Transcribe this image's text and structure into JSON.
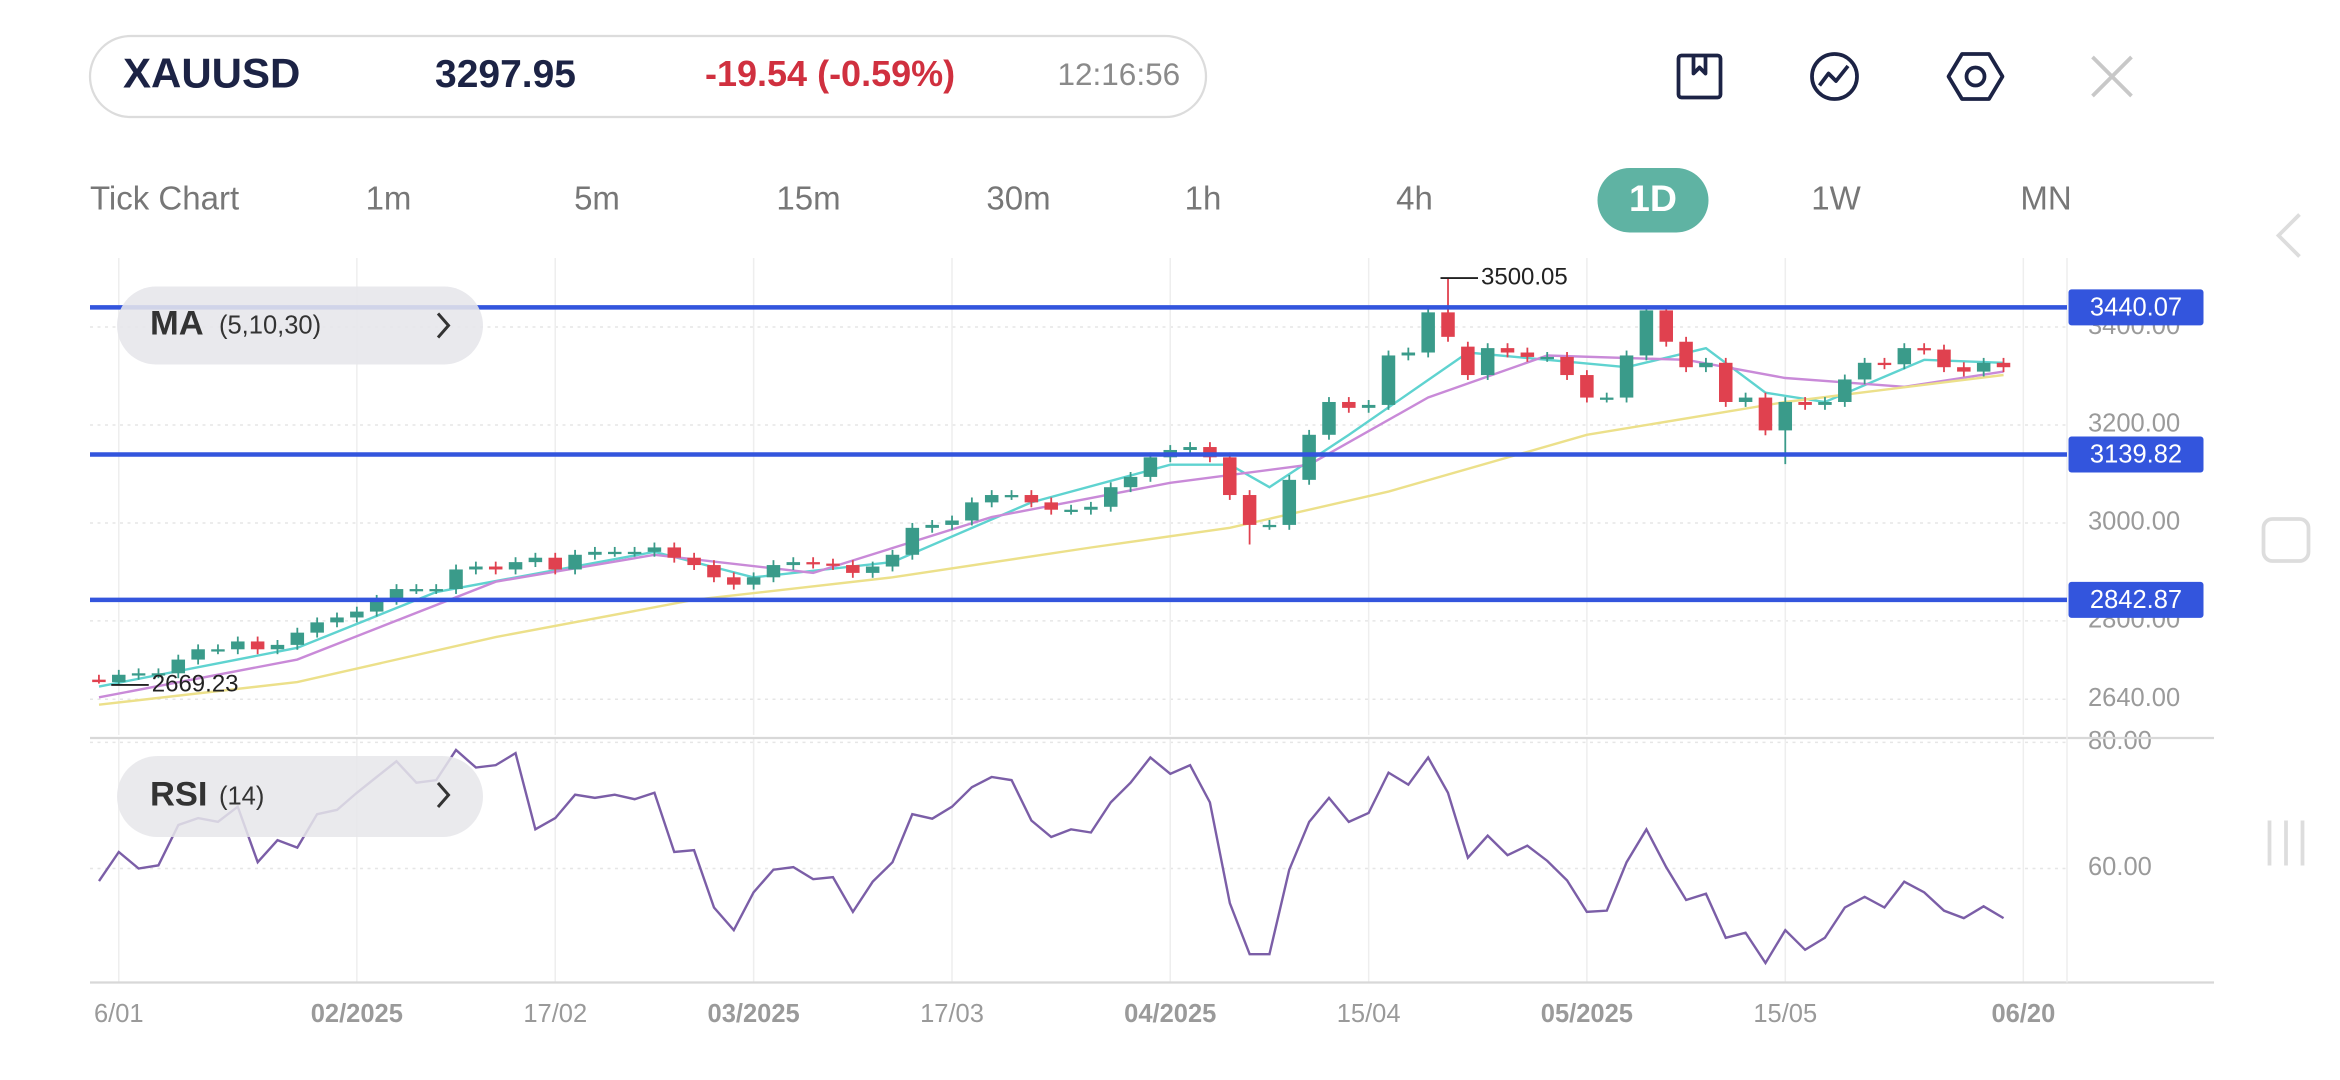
{
  "header": {
    "symbol": "XAUUSD",
    "price": 3297.95,
    "change": "-19.54 (-0.59%)",
    "time": "12:16:56"
  },
  "timeframes": [
    "Tick Chart",
    "1m",
    "5m",
    "15m",
    "30m",
    "1h",
    "4h",
    "1D",
    "1W",
    "MN"
  ],
  "active_timeframe_index": 7,
  "indicators": {
    "ma": {
      "name": "MA",
      "params": "(5,10,30)"
    },
    "rsi": {
      "name": "RSI",
      "params": "(14)"
    }
  },
  "chart_data": {
    "type": "candlestick",
    "x": [
      0,
      1,
      2,
      3,
      4,
      5,
      6,
      7,
      8,
      9,
      10,
      11,
      12,
      13,
      14,
      15,
      16,
      17,
      18,
      19,
      20,
      21,
      22,
      23,
      24,
      25,
      26,
      27,
      28,
      29,
      30,
      31,
      32,
      33,
      34,
      35,
      36,
      37,
      38,
      39,
      40,
      41,
      42,
      43,
      44,
      45,
      46,
      47,
      48,
      49,
      50,
      51,
      52,
      53,
      54,
      55,
      56,
      57,
      58,
      59,
      60,
      61,
      62,
      63,
      64,
      65,
      66,
      67,
      68,
      69,
      70,
      71,
      72,
      73,
      74,
      75,
      76,
      77,
      78,
      79,
      80,
      81,
      82,
      83,
      84,
      85,
      86,
      87,
      88,
      89,
      90,
      91,
      92,
      93,
      94,
      95,
      96
    ],
    "open": [
      2680,
      2675,
      2690,
      2693,
      2693,
      2721,
      2742,
      2742,
      2758,
      2742,
      2751,
      2776,
      2797,
      2807,
      2819,
      2843,
      2865,
      2865,
      2865,
      2905,
      2911,
      2905,
      2920,
      2929,
      2905,
      2935,
      2941,
      2941,
      2941,
      2950,
      2929,
      2914,
      2889,
      2874,
      2889,
      2914,
      2920,
      2917,
      2914,
      2898,
      2911,
      2935,
      2990,
      2996,
      3005,
      3042,
      3057,
      3057,
      3042,
      3027,
      3027,
      3033,
      3073,
      3094,
      3134,
      3149,
      3155,
      3134,
      3057,
      2996,
      2996,
      3088,
      3180,
      3247,
      3235,
      3241,
      3342,
      3348,
      3430,
      3360,
      3302,
      3357,
      3348,
      3339,
      3339,
      3302,
      3256,
      3256,
      3342,
      3434,
      3370,
      3318,
      3327,
      3247,
      3256,
      3189,
      3247,
      3241,
      3247,
      3293,
      3327,
      3324,
      3357,
      3354,
      3318,
      3309,
      3327
    ],
    "high": [
      2690,
      2700,
      2703,
      2703,
      2731,
      2752,
      2752,
      2768,
      2768,
      2761,
      2786,
      2807,
      2817,
      2829,
      2853,
      2875,
      2875,
      2875,
      2915,
      2921,
      2921,
      2930,
      2939,
      2939,
      2945,
      2951,
      2951,
      2951,
      2960,
      2960,
      2939,
      2924,
      2899,
      2899,
      2924,
      2930,
      2930,
      2927,
      2924,
      2921,
      2945,
      3000,
      3006,
      3015,
      3052,
      3067,
      3067,
      3067,
      3052,
      3037,
      3043,
      3083,
      3104,
      3144,
      3159,
      3165,
      3165,
      3144,
      3067,
      3006,
      3098,
      3190,
      3257,
      3257,
      3251,
      3352,
      3358,
      3440,
      3500.05,
      3370,
      3367,
      3367,
      3358,
      3349,
      3349,
      3312,
      3266,
      3352,
      3444,
      3444,
      3380,
      3337,
      3337,
      3266,
      3266,
      3257,
      3257,
      3257,
      3303,
      3337,
      3337,
      3367,
      3367,
      3364,
      3328,
      3337,
      3337
    ],
    "low": [
      2672,
      2669.23,
      2680,
      2683,
      2683,
      2711,
      2732,
      2732,
      2732,
      2732,
      2741,
      2766,
      2787,
      2797,
      2809,
      2833,
      2855,
      2855,
      2855,
      2895,
      2895,
      2895,
      2910,
      2895,
      2895,
      2925,
      2931,
      2931,
      2931,
      2919,
      2904,
      2879,
      2864,
      2864,
      2879,
      2904,
      2907,
      2904,
      2888,
      2888,
      2901,
      2925,
      2980,
      2986,
      2995,
      3032,
      3047,
      3032,
      3017,
      3017,
      3017,
      3023,
      3063,
      3084,
      3124,
      3139,
      3124,
      3047,
      2956,
      2986,
      2986,
      3078,
      3170,
      3225,
      3225,
      3231,
      3332,
      3338,
      3370,
      3292,
      3292,
      3338,
      3329,
      3329,
      3292,
      3246,
      3246,
      3246,
      3332,
      3360,
      3308,
      3308,
      3237,
      3237,
      3179,
      3120,
      3231,
      3231,
      3237,
      3283,
      3314,
      3314,
      3344,
      3308,
      3299,
      3299,
      3308
    ],
    "close": [
      2675,
      2690,
      2693,
      2693,
      2721,
      2742,
      2742,
      2758,
      2742,
      2751,
      2776,
      2797,
      2807,
      2819,
      2843,
      2865,
      2865,
      2865,
      2905,
      2911,
      2905,
      2920,
      2929,
      2905,
      2935,
      2941,
      2941,
      2941,
      2950,
      2929,
      2914,
      2889,
      2874,
      2889,
      2914,
      2920,
      2917,
      2914,
      2898,
      2911,
      2935,
      2990,
      2996,
      3005,
      3042,
      3057,
      3057,
      3042,
      3027,
      3027,
      3033,
      3073,
      3094,
      3134,
      3149,
      3155,
      3134,
      3057,
      2996,
      2996,
      3088,
      3180,
      3247,
      3235,
      3241,
      3342,
      3348,
      3430,
      3380,
      3302,
      3357,
      3348,
      3339,
      3339,
      3302,
      3256,
      3256,
      3342,
      3434,
      3370,
      3318,
      3327,
      3247,
      3256,
      3189,
      3247,
      3241,
      3247,
      3293,
      3327,
      3324,
      3357,
      3354,
      3318,
      3309,
      3327,
      3318
    ],
    "up_color": "#3a9b8a",
    "down_color": "#e0414f",
    "xlim": [
      -0.45,
      99.2
    ],
    "xticks": [
      {
        "value": 1,
        "label": "6/01"
      },
      {
        "value": 13,
        "label": "02/2025"
      },
      {
        "value": 23,
        "label": "17/02"
      },
      {
        "value": 33,
        "label": "03/2025"
      },
      {
        "value": 43,
        "label": "17/03"
      },
      {
        "value": 54,
        "label": "04/2025"
      },
      {
        "value": 64,
        "label": "15/04"
      },
      {
        "value": 75,
        "label": "05/2025"
      },
      {
        "value": 85,
        "label": "15/05"
      },
      {
        "value": 97,
        "label": "06/20"
      }
    ],
    "ylim": [
      2567,
      3541
    ],
    "yticks": [
      {
        "value": 2640,
        "label": "2640.00"
      },
      {
        "value": 2800,
        "label": "2800.00"
      },
      {
        "value": 3000,
        "label": "3000.00"
      },
      {
        "value": 3200,
        "label": "3200.00"
      },
      {
        "value": 3400,
        "label": "3400.00"
      }
    ],
    "grid": true,
    "levels": [
      3440.07,
      3139.82,
      2842.87
    ],
    "level_color": "#3355dd",
    "overlays": [
      {
        "color": "#5fd3d0",
        "x": [
          0,
          10,
          17,
          28,
          33,
          40,
          47,
          54,
          57,
          59,
          63,
          69,
          77,
          81,
          84,
          87,
          92,
          96
        ],
        "values": [
          2666,
          2745,
          2859,
          2941,
          2889,
          2920,
          3042,
          3119,
          3119,
          3073,
          3180,
          3348,
          3318,
          3357,
          3266,
          3247,
          3333,
          3327
        ]
      },
      {
        "color": "#c98ad8",
        "x": [
          0,
          10,
          20,
          28,
          36,
          45,
          54,
          61,
          67,
          73,
          80,
          85,
          91,
          96
        ],
        "values": [
          2644,
          2721,
          2880,
          2935,
          2898,
          3012,
          3082,
          3119,
          3256,
          3342,
          3333,
          3296,
          3278,
          3309
        ]
      },
      {
        "color": "#ece08a",
        "x": [
          0,
          10,
          20,
          30,
          40,
          50,
          57,
          65,
          75,
          85,
          96
        ],
        "values": [
          2629,
          2675,
          2767,
          2843,
          2889,
          2950,
          2990,
          3064,
          3180,
          3247,
          3302
        ]
      }
    ],
    "rsi": {
      "color": "#7b5ea7",
      "values": [
        58,
        62.6,
        60,
        60.5,
        66.9,
        68,
        67.4,
        69.8,
        61,
        64.5,
        63.3,
        68.6,
        69.3,
        72,
        74.5,
        77,
        73.6,
        74,
        78.8,
        76,
        76.4,
        78.3,
        66.2,
        68,
        71.7,
        71.2,
        71.7,
        71,
        72,
        62.6,
        62.9,
        53.8,
        50.2,
        56.2,
        59.8,
        60.2,
        58.3,
        58.6,
        53.1,
        57.9,
        61,
        68.6,
        67.9,
        69.8,
        72.9,
        74.5,
        74,
        67.6,
        65,
        66.2,
        65.7,
        70.5,
        73.6,
        77.6,
        75,
        76.4,
        70.5,
        54.5,
        46.4,
        46.4,
        59.8,
        67.4,
        71.2,
        67.4,
        68.8,
        75.2,
        73.3,
        77.6,
        72,
        61.7,
        65.2,
        62.1,
        63.6,
        61.2,
        58.1,
        53.1,
        53.3,
        61,
        66.2,
        60.2,
        55,
        56,
        49,
        49.8,
        45,
        50.2,
        47.1,
        49,
        53.8,
        55.5,
        53.8,
        57.9,
        56.2,
        53.3,
        52.1,
        54,
        52.1
      ],
      "ylim": [
        41.9,
        80.7
      ],
      "yticks": [
        {
          "value": 60,
          "label": "60.00"
        },
        {
          "value": 80,
          "label": "80.00"
        }
      ]
    }
  }
}
